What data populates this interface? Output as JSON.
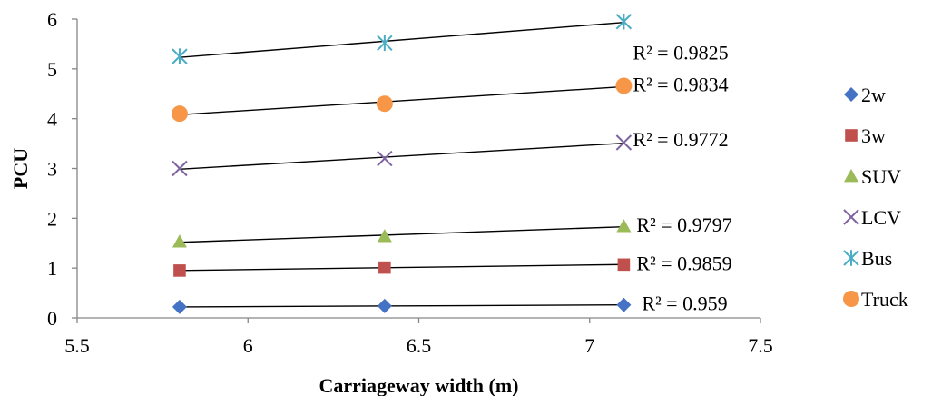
{
  "chart_data": {
    "type": "scatter",
    "title": "",
    "xlabel": "Carriageway width (m)",
    "ylabel": "PCU",
    "xlim": [
      5.5,
      7.5
    ],
    "ylim": [
      0,
      6
    ],
    "xticks": [
      "5.5",
      "6",
      "6.5",
      "7",
      "7.5"
    ],
    "yticks": [
      "0",
      "1",
      "2",
      "3",
      "4",
      "5",
      "6"
    ],
    "grid": false,
    "legend_position": "right",
    "x": [
      5.8,
      6.4,
      7.1
    ],
    "series": [
      {
        "name": "2w",
        "values": [
          0.22,
          0.24,
          0.26
        ],
        "marker": "diamond",
        "color": "#4472C4",
        "r2": "R² = 0.959"
      },
      {
        "name": "3w",
        "values": [
          0.95,
          1.01,
          1.07
        ],
        "marker": "square",
        "color": "#C0504D",
        "r2": "R² = 0.9859"
      },
      {
        "name": "SUV",
        "values": [
          1.53,
          1.64,
          1.84
        ],
        "marker": "triangle",
        "color": "#9BBB59",
        "r2": "R² = 0.9797"
      },
      {
        "name": "LCV",
        "values": [
          3.0,
          3.2,
          3.52
        ],
        "marker": "x",
        "color": "#8064A2",
        "r2": "R² = 0.9772"
      },
      {
        "name": "Bus",
        "values": [
          5.25,
          5.52,
          5.95
        ],
        "marker": "star",
        "color": "#4BACC6",
        "r2": "R² = 0.9825"
      },
      {
        "name": "Truck",
        "values": [
          4.1,
          4.3,
          4.66
        ],
        "marker": "circle",
        "color": "#F79646",
        "r2": "R² = 0.9834"
      }
    ],
    "trendline_color": "#000000"
  }
}
